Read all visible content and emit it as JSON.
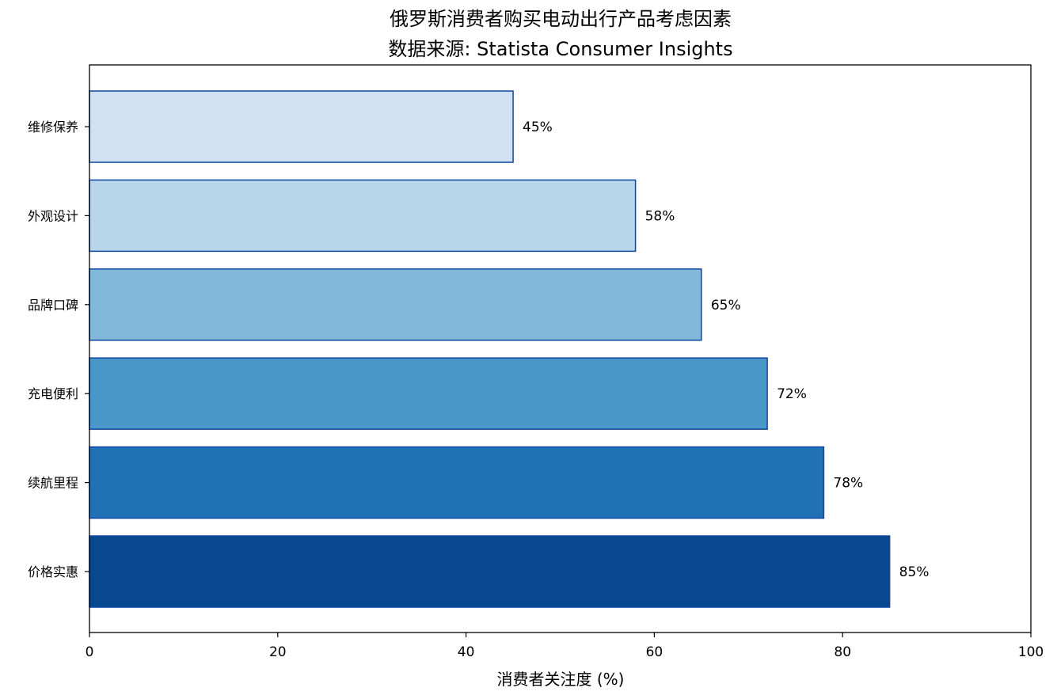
{
  "chart_data": {
    "type": "bar",
    "orientation": "horizontal",
    "title": "俄罗斯消费者购买电动出行产品考虑因素",
    "subtitle": "数据来源: Statista Consumer Insights",
    "xlabel": "消费者关注度 (%)",
    "ylabel": "",
    "xlim": [
      0,
      100
    ],
    "x_ticks": [
      0,
      20,
      40,
      60,
      80,
      100
    ],
    "grid": false,
    "categories": [
      "价格实惠",
      "续航里程",
      "充电便利",
      "品牌口碑",
      "外观设计",
      "维修保养"
    ],
    "values": [
      85,
      78,
      72,
      65,
      58,
      45
    ],
    "value_labels": [
      "85%",
      "78%",
      "72%",
      "65%",
      "58%",
      "45%"
    ],
    "bar_colors": [
      "#08488e",
      "#2171b5",
      "#4a98c9",
      "#82b9da",
      "#b9d5ea",
      "#d0e1f2"
    ],
    "bar_edge_color": "#0d47a1"
  }
}
